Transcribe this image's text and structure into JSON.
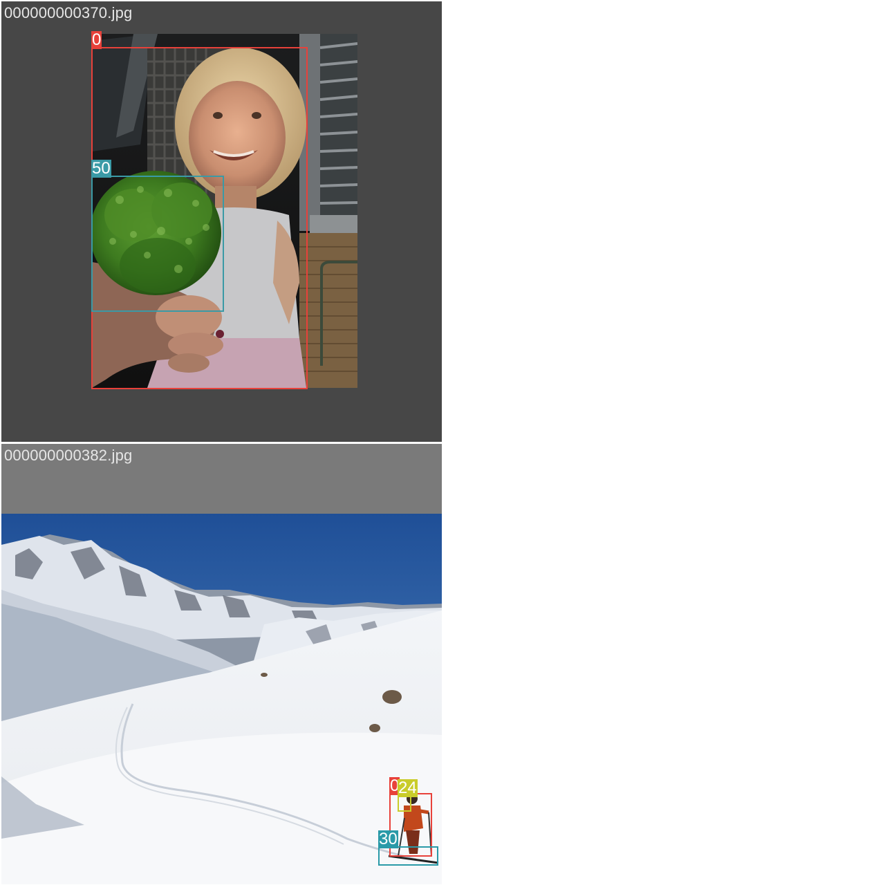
{
  "tiles": [
    {
      "filename": "000000000370.jpg",
      "scene": "girl holding broccoli",
      "detections": [
        {
          "label": "0",
          "color": "#e8413a"
        },
        {
          "label": "50",
          "color": "#3a9aa6"
        }
      ]
    },
    {
      "filename": "000000000382.jpg",
      "scene": "skier on snowy mountain slope",
      "detections": [
        {
          "label": "0",
          "color": "#e8413a"
        },
        {
          "label": "24",
          "color": "#c9cc2a"
        },
        {
          "label": "30",
          "color": "#2a9aa8"
        }
      ]
    }
  ]
}
